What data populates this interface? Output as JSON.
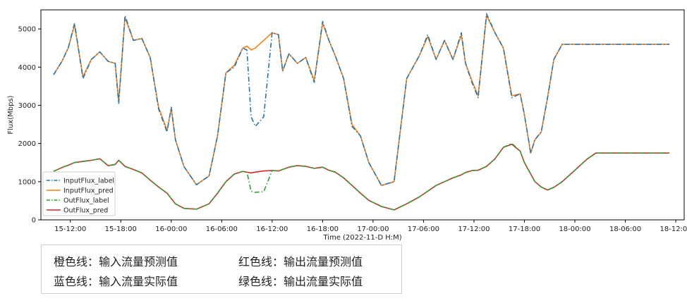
{
  "chart_data": {
    "type": "line",
    "xlabel": "Time (2022-11-D H:M)",
    "ylabel": "Flux(Mbps)",
    "ylim": [
      0,
      5500
    ],
    "yticks": [
      0,
      1000,
      2000,
      3000,
      4000,
      5000
    ],
    "xlim": [
      "2022-11-15 08:30",
      "2022-11-18 13:00"
    ],
    "xticks": [
      "15-12:00",
      "15-18:00",
      "16-00:00",
      "16-06:00",
      "16-12:00",
      "16-18:00",
      "17-00:00",
      "17-06:00",
      "17-12:00",
      "17-18:00",
      "18-00:00",
      "18-06:00",
      "18-12:00"
    ],
    "legend_position": "lower-left",
    "x": [
      "2022-11-15 10:00",
      "2022-11-15 11:00",
      "2022-11-15 11:45",
      "2022-11-15 12:30",
      "2022-11-15 13:30",
      "2022-11-15 14:30",
      "2022-11-15 15:30",
      "2022-11-15 16:30",
      "2022-11-15 17:20",
      "2022-11-15 17:45",
      "2022-11-15 18:30",
      "2022-11-15 19:30",
      "2022-11-15 20:30",
      "2022-11-15 21:30",
      "2022-11-15 22:30",
      "2022-11-15 23:30",
      "2022-11-16 00:00",
      "2022-11-16 00:30",
      "2022-11-16 01:30",
      "2022-11-16 03:00",
      "2022-11-16 04:30",
      "2022-11-16 05:30",
      "2022-11-16 06:30",
      "2022-11-16 07:30",
      "2022-11-16 08:30",
      "2022-11-16 09:00",
      "2022-11-16 09:30",
      "2022-11-16 10:00",
      "2022-11-16 11:00",
      "2022-11-16 12:00",
      "2022-11-16 12:45",
      "2022-11-16 13:15",
      "2022-11-16 14:00",
      "2022-11-16 15:00",
      "2022-11-16 16:00",
      "2022-11-16 17:00",
      "2022-11-16 18:00",
      "2022-11-16 18:45",
      "2022-11-16 19:30",
      "2022-11-16 20:30",
      "2022-11-16 21:30",
      "2022-11-16 22:30",
      "2022-11-16 23:30",
      "2022-11-17 01:00",
      "2022-11-17 02:30",
      "2022-11-17 04:00",
      "2022-11-17 05:30",
      "2022-11-17 06:30",
      "2022-11-17 07:30",
      "2022-11-17 08:30",
      "2022-11-17 09:30",
      "2022-11-17 10:30",
      "2022-11-17 11:00",
      "2022-11-17 11:45",
      "2022-11-17 12:30",
      "2022-11-17 13:30",
      "2022-11-17 14:30",
      "2022-11-17 15:30",
      "2022-11-17 16:30",
      "2022-11-17 17:30",
      "2022-11-17 18:00",
      "2022-11-17 18:45",
      "2022-11-17 19:15",
      "2022-11-17 20:00",
      "2022-11-17 20:45",
      "2022-11-17 21:30",
      "2022-11-17 22:30",
      "2022-11-17 23:30",
      "2022-11-18 00:30",
      "2022-11-18 01:30",
      "2022-11-18 02:30",
      "2022-11-18 03:30",
      "2022-11-18 04:30",
      "2022-11-18 05:30",
      "2022-11-18 06:00",
      "2022-11-18 07:00",
      "2022-11-18 08:00",
      "2022-11-18 09:00",
      "2022-11-18 10:00",
      "2022-11-18 10:45",
      "2022-11-18 11:15"
    ],
    "series": [
      {
        "name": "InputFlux_label",
        "color": "#1f77b4",
        "style": "dashdot",
        "values": [
          3800,
          4150,
          4500,
          5150,
          3700,
          4200,
          4400,
          4150,
          4100,
          3050,
          5350,
          4700,
          4750,
          4250,
          2900,
          2300,
          2950,
          2100,
          1400,
          920,
          1150,
          2200,
          3850,
          4000,
          4500,
          4450,
          2700,
          2450,
          2700,
          4900,
          4850,
          3900,
          4350,
          4100,
          4250,
          3600,
          5200,
          4700,
          4300,
          3700,
          2450,
          2200,
          1500,
          900,
          1000,
          3700,
          4300,
          4850,
          4200,
          4700,
          4200,
          4900,
          4100,
          3600,
          3200,
          5400,
          4900,
          4500,
          3200,
          3300,
          2750,
          1750,
          2100,
          2300,
          3200,
          4200,
          4600,
          4600,
          4600,
          4600,
          4600,
          4600,
          4600,
          4600,
          4600,
          4600,
          4600,
          4600,
          4600,
          4600,
          4600
        ]
      },
      {
        "name": "InputFlux_pred",
        "color": "#ff7f0e",
        "style": "solid",
        "values": [
          3800,
          4150,
          4500,
          5100,
          3750,
          4200,
          4400,
          4150,
          4100,
          3100,
          5300,
          4700,
          4750,
          4250,
          2950,
          2350,
          2900,
          2100,
          1400,
          920,
          1150,
          2200,
          3850,
          4050,
          4500,
          4550,
          4450,
          4500,
          4700,
          4900,
          4850,
          3900,
          4350,
          4100,
          4250,
          3650,
          5150,
          4700,
          4300,
          3700,
          2500,
          2200,
          1500,
          900,
          1000,
          3700,
          4300,
          4800,
          4200,
          4700,
          4200,
          4850,
          4100,
          3650,
          3250,
          5350,
          4900,
          4500,
          3250,
          3300,
          2750,
          1750,
          2100,
          2300,
          3200,
          4200,
          4600,
          4600,
          4600,
          4600,
          4600,
          4600,
          4600,
          4600,
          4600,
          4600,
          4600,
          4600,
          4600,
          4600,
          4600
        ]
      },
      {
        "name": "OutFlux_label",
        "color": "#2ca02c",
        "style": "dashdot",
        "values": [
          1270,
          1370,
          1430,
          1500,
          1530,
          1560,
          1600,
          1420,
          1450,
          1560,
          1400,
          1320,
          1230,
          1040,
          860,
          700,
          560,
          420,
          300,
          280,
          420,
          700,
          1000,
          1200,
          1270,
          1250,
          750,
          720,
          740,
          1290,
          1280,
          1320,
          1380,
          1420,
          1400,
          1350,
          1380,
          1300,
          1250,
          1100,
          900,
          700,
          510,
          350,
          260,
          420,
          600,
          750,
          900,
          1000,
          1100,
          1180,
          1240,
          1290,
          1300,
          1400,
          1600,
          1900,
          2000,
          1800,
          1500,
          1200,
          1000,
          860,
          780,
          850,
          1000,
          1200,
          1400,
          1600,
          1750,
          1750,
          1750,
          1750,
          1750,
          1750,
          1750,
          1750,
          1750,
          1750,
          1750
        ]
      },
      {
        "name": "OutFlux_pred",
        "color": "#d62728",
        "style": "solid",
        "values": [
          1270,
          1370,
          1430,
          1500,
          1530,
          1560,
          1600,
          1420,
          1450,
          1560,
          1400,
          1320,
          1230,
          1040,
          860,
          700,
          560,
          420,
          300,
          280,
          420,
          700,
          1000,
          1200,
          1270,
          1250,
          1230,
          1250,
          1280,
          1290,
          1280,
          1320,
          1380,
          1420,
          1400,
          1350,
          1380,
          1300,
          1250,
          1100,
          900,
          700,
          510,
          350,
          260,
          420,
          600,
          750,
          900,
          1000,
          1100,
          1180,
          1240,
          1290,
          1300,
          1400,
          1600,
          1900,
          1980,
          1800,
          1500,
          1200,
          1000,
          860,
          780,
          850,
          1000,
          1200,
          1400,
          1600,
          1750,
          1750,
          1750,
          1750,
          1750,
          1750,
          1750,
          1750,
          1750,
          1750,
          1750
        ]
      }
    ]
  },
  "notes": {
    "row1_left": "橙色线：输入流量预测值",
    "row1_right": "红色线：输出流量预测值",
    "row2_left": "蓝色线：输入流量实际值",
    "row2_right": "绿色线：输出流量实际值"
  }
}
